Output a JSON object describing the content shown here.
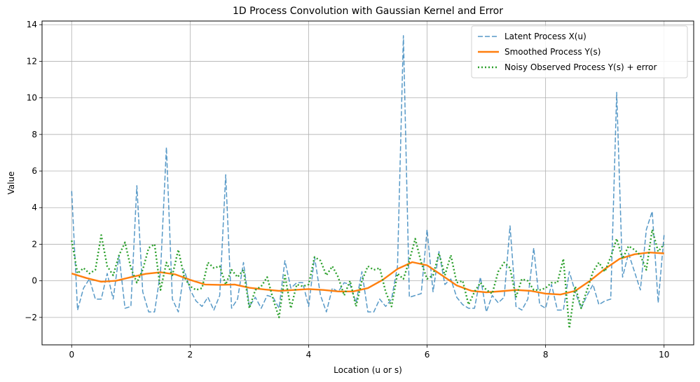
{
  "chart_data": {
    "type": "line",
    "title": "1D Process Convolution with Gaussian Kernel and Error",
    "xlabel": "Location (u or s)",
    "ylabel": "Value",
    "xlim": [
      -0.5,
      10.5
    ],
    "ylim": [
      -3.5,
      14.2
    ],
    "xticks": [
      0,
      2,
      4,
      6,
      8,
      10
    ],
    "yticks": [
      -2,
      0,
      2,
      4,
      6,
      8,
      10,
      12,
      14
    ],
    "grid": true,
    "legend_position": "top-right",
    "series": [
      {
        "name": "Latent Process X(u)",
        "color": "#1f77b4",
        "style": "dashed",
        "x": [
          0,
          0.1,
          0.2,
          0.3,
          0.4,
          0.5,
          0.6,
          0.7,
          0.8,
          0.9,
          1.0,
          1.1,
          1.2,
          1.3,
          1.4,
          1.5,
          1.6,
          1.7,
          1.8,
          1.9,
          2.0,
          2.1,
          2.2,
          2.3,
          2.4,
          2.5,
          2.6,
          2.7,
          2.8,
          2.9,
          3.0,
          3.1,
          3.2,
          3.3,
          3.4,
          3.5,
          3.6,
          3.7,
          3.8,
          3.9,
          4.0,
          4.1,
          4.2,
          4.3,
          4.4,
          4.5,
          4.6,
          4.7,
          4.8,
          4.9,
          5.0,
          5.1,
          5.2,
          5.3,
          5.4,
          5.5,
          5.6,
          5.7,
          5.8,
          5.9,
          6.0,
          6.1,
          6.2,
          6.3,
          6.4,
          6.5,
          6.6,
          6.7,
          6.8,
          6.9,
          7.0,
          7.1,
          7.2,
          7.3,
          7.4,
          7.5,
          7.6,
          7.7,
          7.8,
          7.9,
          8.0,
          8.1,
          8.2,
          8.3,
          8.4,
          8.5,
          8.6,
          8.7,
          8.8,
          8.9,
          9.0,
          9.1,
          9.2,
          9.3,
          9.4,
          9.5,
          9.6,
          9.7,
          9.8,
          9.9,
          10.0
        ],
        "y": [
          4.9,
          -1.6,
          -0.4,
          0.1,
          -1.0,
          -1.0,
          0.4,
          -1.0,
          1.4,
          -1.5,
          -1.4,
          5.2,
          -0.6,
          -1.7,
          -1.7,
          0.5,
          7.3,
          -1.0,
          -1.7,
          0.6,
          -0.5,
          -1.1,
          -1.4,
          -0.9,
          -1.6,
          -0.8,
          5.8,
          -1.5,
          -1.0,
          1.0,
          -1.4,
          -0.9,
          -1.5,
          -0.8,
          -0.9,
          -1.5,
          1.1,
          -0.4,
          -0.1,
          -0.1,
          -1.4,
          1.3,
          -0.8,
          -1.7,
          -0.4,
          -0.6,
          -0.1,
          -0.2,
          -1.2,
          0.5,
          -1.7,
          -1.7,
          -1.0,
          -1.4,
          -1.0,
          0.8,
          13.4,
          -0.9,
          -0.8,
          -0.7,
          2.8,
          -0.6,
          1.6,
          -0.2,
          0.1,
          -0.9,
          -1.3,
          -1.5,
          -1.5,
          0.2,
          -1.7,
          -0.8,
          -1.2,
          -0.9,
          3.0,
          -1.4,
          -1.6,
          -1.0,
          1.8,
          -1.3,
          -1.5,
          -0.2,
          -1.6,
          -1.6,
          0.5,
          -0.6,
          -1.5,
          -0.8,
          -0.2,
          -1.3,
          -1.1,
          -1.0,
          10.3,
          0.2,
          1.5,
          0.5,
          -0.5,
          2.8,
          3.8,
          -1.2,
          2.5
        ]
      },
      {
        "name": "Smoothed Process Y(s)",
        "color": "#ff7f0e",
        "style": "solid",
        "x": [
          0,
          0.25,
          0.5,
          0.75,
          1.0,
          1.25,
          1.5,
          1.75,
          2.0,
          2.25,
          2.5,
          2.75,
          3.0,
          3.25,
          3.5,
          3.75,
          4.0,
          4.25,
          4.5,
          4.75,
          5.0,
          5.25,
          5.5,
          5.75,
          6.0,
          6.25,
          6.5,
          6.75,
          7.0,
          7.25,
          7.5,
          7.75,
          8.0,
          8.25,
          8.5,
          8.75,
          9.0,
          9.25,
          9.5,
          9.75,
          10.0
        ],
        "y": [
          0.4,
          0.15,
          -0.05,
          0.0,
          0.2,
          0.38,
          0.47,
          0.35,
          0.05,
          -0.2,
          -0.22,
          -0.2,
          -0.38,
          -0.47,
          -0.55,
          -0.5,
          -0.45,
          -0.5,
          -0.58,
          -0.58,
          -0.4,
          0.05,
          0.65,
          1.02,
          0.85,
          0.3,
          -0.25,
          -0.55,
          -0.63,
          -0.57,
          -0.5,
          -0.55,
          -0.7,
          -0.75,
          -0.55,
          0.0,
          0.65,
          1.2,
          1.45,
          1.55,
          1.5
        ]
      },
      {
        "name": "Noisy Observed Process Y(s) + error",
        "color": "#2ca02c",
        "style": "dotted",
        "x": [
          0,
          0.1,
          0.2,
          0.3,
          0.4,
          0.5,
          0.6,
          0.7,
          0.8,
          0.9,
          1.0,
          1.1,
          1.2,
          1.3,
          1.4,
          1.5,
          1.6,
          1.7,
          1.8,
          1.9,
          2.0,
          2.1,
          2.2,
          2.3,
          2.4,
          2.5,
          2.6,
          2.7,
          2.8,
          2.9,
          3.0,
          3.1,
          3.2,
          3.3,
          3.4,
          3.5,
          3.6,
          3.7,
          3.8,
          3.9,
          4.0,
          4.1,
          4.2,
          4.3,
          4.4,
          4.5,
          4.6,
          4.7,
          4.8,
          4.9,
          5.0,
          5.1,
          5.2,
          5.3,
          5.4,
          5.5,
          5.6,
          5.7,
          5.8,
          5.9,
          6.0,
          6.1,
          6.2,
          6.3,
          6.4,
          6.5,
          6.6,
          6.7,
          6.8,
          6.9,
          7.0,
          7.1,
          7.2,
          7.3,
          7.4,
          7.5,
          7.6,
          7.7,
          7.8,
          7.9,
          8.0,
          8.1,
          8.2,
          8.3,
          8.4,
          8.5,
          8.6,
          8.7,
          8.8,
          8.9,
          9.0,
          9.1,
          9.2,
          9.3,
          9.4,
          9.5,
          9.6,
          9.7,
          9.8,
          9.9,
          10.0
        ],
        "y": [
          2.2,
          0.4,
          0.7,
          0.4,
          0.6,
          2.5,
          0.8,
          0.3,
          1.4,
          2.1,
          0.7,
          -0.1,
          0.6,
          1.8,
          2.0,
          -0.5,
          1.0,
          0.3,
          1.7,
          0.2,
          -0.3,
          -0.5,
          -0.4,
          1.0,
          0.7,
          0.8,
          -0.2,
          0.6,
          0.2,
          0.6,
          -1.5,
          -0.5,
          -0.3,
          0.2,
          -1.0,
          -2.0,
          0.3,
          -1.5,
          -0.2,
          -0.3,
          -0.2,
          1.3,
          1.1,
          0.3,
          0.8,
          0.2,
          -0.8,
          0.0,
          -1.4,
          0.0,
          0.8,
          0.6,
          0.7,
          -0.6,
          -1.4,
          0.4,
          0.1,
          1.1,
          2.3,
          1.0,
          0.1,
          0.3,
          1.5,
          0.3,
          1.4,
          -0.1,
          0.0,
          -1.3,
          -0.6,
          -0.1,
          -0.5,
          -0.7,
          0.5,
          1.0,
          0.7,
          -0.9,
          0.1,
          0.0,
          -0.5,
          -0.5,
          -0.4,
          -0.1,
          -0.1,
          1.2,
          -2.6,
          -0.3,
          -1.5,
          -0.5,
          0.5,
          1.0,
          0.5,
          1.3,
          2.3,
          1.2,
          1.9,
          1.7,
          1.4,
          0.6,
          2.8,
          1.6,
          2.0
        ]
      }
    ]
  }
}
